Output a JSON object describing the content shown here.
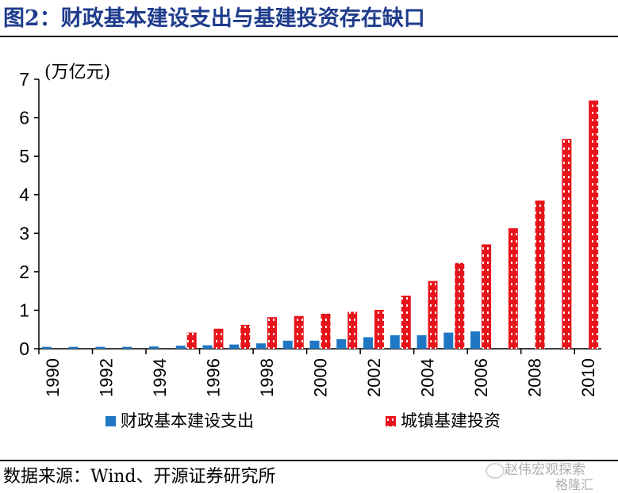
{
  "title": "图2：财政基本建设支出与基建投资存在缺口",
  "source": "数据来源：Wind、开源证券研究所",
  "watermark": {
    "line1": "赵伟宏观探索",
    "line2": "格隆汇"
  },
  "colors": {
    "title": "#1f3c8c",
    "series_blue": "#1f77c4",
    "series_red": "#e8141b"
  },
  "chart_data": {
    "type": "bar",
    "unit_label": "(万亿元)",
    "categories": [
      "1990",
      "1991",
      "1992",
      "1993",
      "1994",
      "1995",
      "1996",
      "1997",
      "1998",
      "1999",
      "2000",
      "2001",
      "2002",
      "2003",
      "2004",
      "2005",
      "2006",
      "2007",
      "2008",
      "2009",
      "2010"
    ],
    "x_tick_labels": [
      "1990",
      "1992",
      "1994",
      "1996",
      "1998",
      "2000",
      "2002",
      "2004",
      "2006",
      "2008",
      "2010"
    ],
    "series": [
      {
        "name": "财政基本建设支出",
        "color": "#1f77c4",
        "pattern": "solid",
        "values": [
          0.05,
          0.05,
          0.05,
          0.05,
          0.06,
          0.08,
          0.09,
          0.11,
          0.14,
          0.21,
          0.21,
          0.25,
          0.3,
          0.35,
          0.35,
          0.42,
          0.45,
          null,
          null,
          null,
          null
        ]
      },
      {
        "name": "城镇基建投资",
        "color": "#e8141b",
        "pattern": "dotted",
        "values": [
          null,
          null,
          null,
          null,
          null,
          0.42,
          0.52,
          0.62,
          0.82,
          0.85,
          0.91,
          0.96,
          1.01,
          1.38,
          1.76,
          2.23,
          2.71,
          3.13,
          3.85,
          5.45,
          6.45
        ]
      }
    ],
    "ylim": [
      0,
      7
    ],
    "yticks": [
      0,
      1,
      2,
      3,
      4,
      5,
      6,
      7
    ],
    "grid": false,
    "legend_position": "bottom"
  }
}
